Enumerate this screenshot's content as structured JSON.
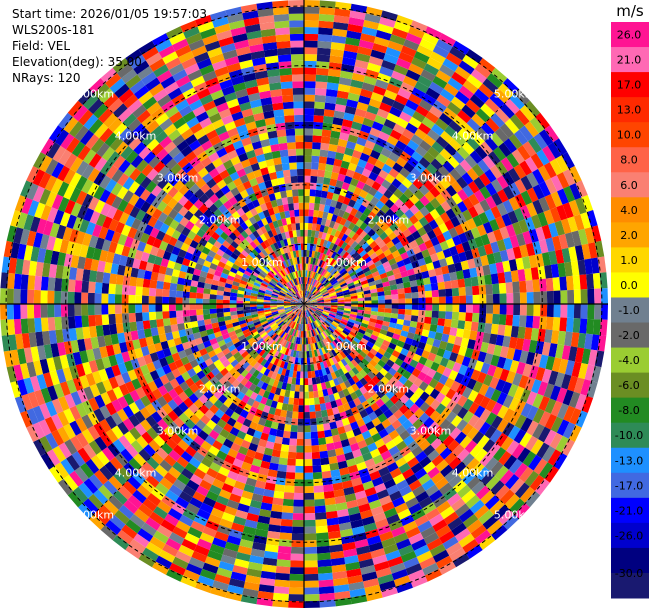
{
  "info": {
    "start_time": "Start time: 2026/01/05 19:57:03",
    "instrument": "WLS200s-181",
    "field": "Field: VEL",
    "elevation": "Elevation(deg): 35.00",
    "nrays": "NRays: 120"
  },
  "chart_data": {
    "type": "heatmap",
    "projection": "polar-ppi",
    "title": "",
    "field": "VEL",
    "units": "m/s",
    "nrays": 120,
    "elevation_deg": 35.0,
    "range_rings_km": [
      1.0,
      2.0,
      3.0,
      4.0,
      5.0
    ],
    "range_ring_labels": [
      "1.00km",
      "2.00km",
      "3.00km",
      "4.00km",
      "5.00km"
    ],
    "max_range_km": 5.0,
    "colorbar": {
      "label": "m/s",
      "tick_labels": [
        "26.0",
        "21.0",
        "17.0",
        "13.0",
        "10.0",
        "8.0",
        "6.0",
        "4.0",
        "2.0",
        "1.0",
        "0.0",
        "-1.0",
        "-2.0",
        "-4.0",
        "-6.0",
        "-8.0",
        "-10.0",
        "-13.0",
        "-17.0",
        "-21.0",
        "-26.0",
        "-30.0"
      ],
      "colors": [
        "#ff1493",
        "#ff69b4",
        "#ff0000",
        "#ff2a00",
        "#ff4500",
        "#ff6347",
        "#fa8072",
        "#ff8c00",
        "#ffa500",
        "#ffd700",
        "#ffff00",
        "#708090",
        "#696969",
        "#9acd32",
        "#6b8e23",
        "#228b22",
        "#2e8b57",
        "#1e90ff",
        "#4169e1",
        "#0000ff",
        "#0000cd",
        "#000080",
        "#191970"
      ]
    },
    "data_note": "velocity field appears as noise across all gates"
  }
}
